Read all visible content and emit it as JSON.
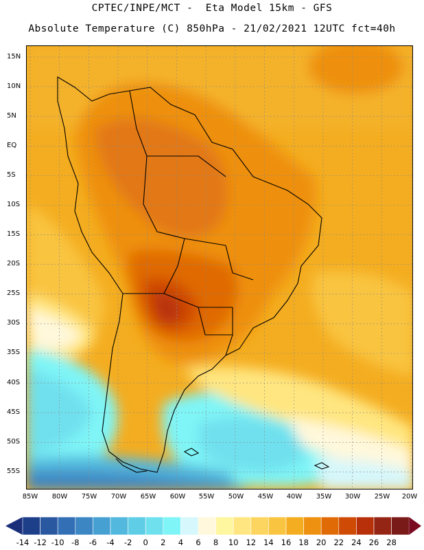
{
  "header": {
    "line1": "CPTEC/INPE/MCT -  Eta Model 15km - GFS",
    "line2": "Absolute Temperature (C) 850hPa - 21/02/2021 12UTC fct=40h"
  },
  "map": {
    "lat_range": [
      -58.5,
      16.5
    ],
    "lon_range": [
      -86,
      -20
    ],
    "lat_ticks": [
      "15N",
      "10N",
      "5N",
      "EQ",
      "5S",
      "10S",
      "15S",
      "20S",
      "25S",
      "30S",
      "35S",
      "40S",
      "45S",
      "50S",
      "55S"
    ],
    "lon_ticks": [
      "85W",
      "80W",
      "75W",
      "70W",
      "65W",
      "60W",
      "55W",
      "50W",
      "45W",
      "40W",
      "35W",
      "30W",
      "25W",
      "20W"
    ],
    "gridlines": true
  },
  "colorbar": {
    "labels": [
      "-14",
      "-12",
      "-10",
      "-8",
      "-6",
      "-4",
      "-2",
      "0",
      "2",
      "4",
      "6",
      "8",
      "10",
      "12",
      "14",
      "16",
      "18",
      "20",
      "22",
      "24",
      "26",
      "28"
    ],
    "colors": [
      "#1d3f8a",
      "#2a58a0",
      "#336fb5",
      "#3c86c4",
      "#47a0d2",
      "#52b8dd",
      "#5fcde6",
      "#6fe0ee",
      "#7ff5f7",
      "#d6f7fb",
      "#fff8dc",
      "#fff6a0",
      "#ffe680",
      "#fcd560",
      "#f9c440",
      "#f4ad20",
      "#ee9010",
      "#e06a05",
      "#cf4a05",
      "#b8300a",
      "#942414",
      "#7a1a18"
    ],
    "under_color": "#1a2e7a",
    "over_color": "#7a0a20"
  }
}
